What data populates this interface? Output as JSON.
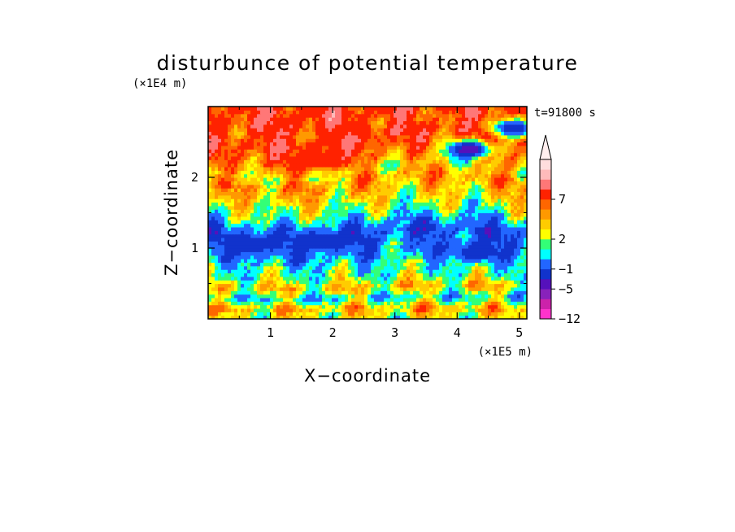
{
  "chart_data": {
    "type": "heatmap",
    "title": "disturbunce of potential temperature",
    "xlabel": "X−coordinate",
    "ylabel": "Z−coordinate",
    "x_unit": "(×1E5 m)",
    "y_unit": "(×1E4 m)",
    "time_label": "t=91800 s",
    "xlim": [
      0,
      5.12
    ],
    "ylim": [
      0,
      3.0
    ],
    "x_ticks": [
      1,
      2,
      3,
      4,
      5
    ],
    "x_tick_labels": [
      "1",
      "2",
      "3",
      "4",
      "5"
    ],
    "y_ticks": [
      1,
      2
    ],
    "y_tick_labels": [
      "1",
      "2"
    ],
    "colorbar": {
      "levels": [
        -12,
        -5,
        -1,
        2,
        7
      ],
      "labels": [
        "−12",
        "−5",
        "−1",
        "2",
        "7"
      ],
      "colors": [
        "#ff33cc",
        "#cc22aa",
        "#8822bb",
        "#5511bb",
        "#1133cc",
        "#2266ff",
        "#00ffff",
        "#33ff77",
        "#ffff00",
        "#ffcc00",
        "#ff9900",
        "#ff6600",
        "#ff2200",
        "#ff7777",
        "#ffbbbb",
        "#ffdddd"
      ],
      "extend_top": true
    },
    "approx_z_profile": {
      "z": [
        0.05,
        0.15,
        0.3,
        0.45,
        0.6,
        0.75,
        0.9,
        1.05,
        1.2,
        1.35,
        1.5,
        1.65,
        1.8,
        1.95,
        2.1,
        2.25,
        2.4,
        2.55,
        2.7,
        2.85
      ],
      "value": [
        1.5,
        3,
        -0.5,
        2.5,
        0.5,
        0,
        -1.5,
        -2,
        -3,
        -1.5,
        0.5,
        1.5,
        2.5,
        3.5,
        2,
        4,
        5,
        6,
        5,
        6
      ]
    },
    "notable_features": [
      {
        "x": 4.2,
        "z": 2.4,
        "value": -7
      },
      {
        "x": 1.8,
        "z": 2.25,
        "value": 7
      },
      {
        "x": 2.3,
        "z": 2.6,
        "value": 7
      },
      {
        "x": 0.7,
        "z": 1.05,
        "value": -5
      },
      {
        "x": 1.9,
        "z": 1.1,
        "value": -5
      },
      {
        "x": 4.3,
        "z": 0.95,
        "value": -5
      },
      {
        "x": 4.9,
        "z": 2.7,
        "value": -5
      }
    ]
  }
}
